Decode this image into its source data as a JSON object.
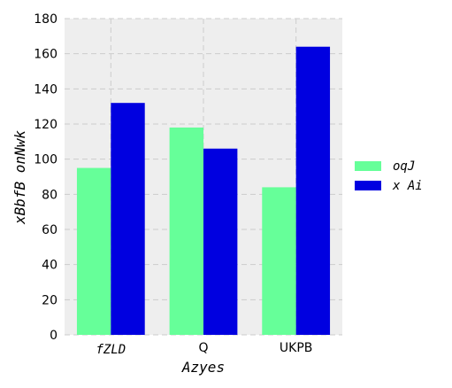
{
  "chart_data": {
    "type": "bar",
    "title": "",
    "xlabel": "Azyes",
    "ylabel": "xBbfB onNwk",
    "categories": [
      "fZLD",
      "Q",
      "UKPB"
    ],
    "category_label_italic": [
      true,
      false,
      false
    ],
    "series": [
      {
        "name": "oqJ",
        "values": [
          95,
          118,
          84
        ],
        "color": "#66ff99"
      },
      {
        "name": "x Ai",
        "values": [
          132,
          106,
          164
        ],
        "color": "#0000e0"
      }
    ],
    "ylim": [
      0,
      180
    ],
    "yticks": [
      0,
      20,
      40,
      60,
      80,
      100,
      120,
      140,
      160,
      180
    ],
    "grid": true,
    "grid_style": "dashed",
    "plot_background": "#eeeeee",
    "legend_position": "right"
  }
}
